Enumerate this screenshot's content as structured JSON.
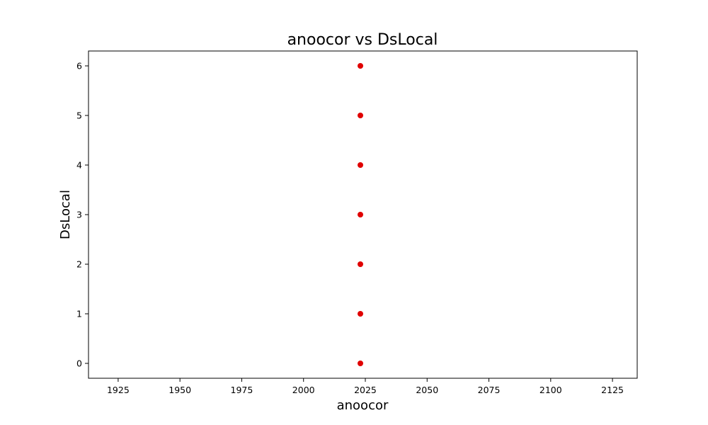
{
  "chart_data": {
    "type": "scatter",
    "title": "anoocor vs DsLocal",
    "xlabel": "anoocor",
    "ylabel": "DsLocal",
    "xlim": [
      1913,
      2135
    ],
    "ylim": [
      -0.3,
      6.3
    ],
    "x_ticks": [
      1925,
      1950,
      1975,
      2000,
      2025,
      2050,
      2075,
      2100,
      2125
    ],
    "y_ticks": [
      0,
      1,
      2,
      3,
      4,
      5,
      6
    ],
    "points": [
      {
        "x": 2023,
        "y": 0
      },
      {
        "x": 2023,
        "y": 1
      },
      {
        "x": 2023,
        "y": 2
      },
      {
        "x": 2023,
        "y": 3
      },
      {
        "x": 2023,
        "y": 4
      },
      {
        "x": 2023,
        "y": 5
      },
      {
        "x": 2023,
        "y": 6
      }
    ],
    "marker_color": "#e00000",
    "grid": false,
    "legend": "none"
  }
}
